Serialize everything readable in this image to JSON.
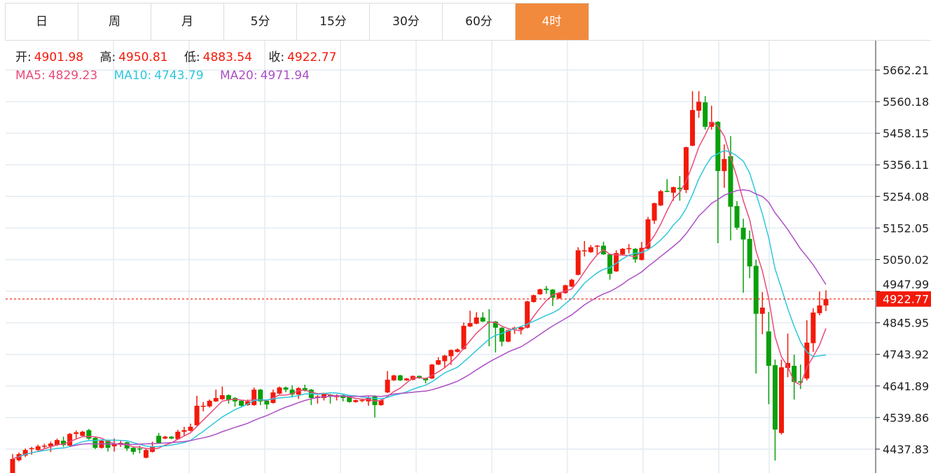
{
  "tabs": [
    {
      "label": "日",
      "active": false
    },
    {
      "label": "周",
      "active": false
    },
    {
      "label": "月",
      "active": false
    },
    {
      "label": "5分",
      "active": false
    },
    {
      "label": "15分",
      "active": false
    },
    {
      "label": "30分",
      "active": false
    },
    {
      "label": "60分",
      "active": false
    },
    {
      "label": "4时",
      "active": true
    }
  ],
  "ohlc": {
    "open_label": "开:",
    "open": "4901.98",
    "high_label": "高:",
    "high": "4950.81",
    "low_label": "低:",
    "low": "4883.54",
    "close_label": "收:",
    "close": "4922.77"
  },
  "ma": {
    "ma5_label": "MA5:",
    "ma5": "4829.23",
    "ma10_label": "MA10:",
    "ma10": "4743.79",
    "ma20_label": "MA20:",
    "ma20": "4971.94"
  },
  "colors": {
    "up": "#f21a0a",
    "down": "#0aa00a",
    "ma5": "#ea4a7a",
    "ma10": "#2ec7dc",
    "ma20": "#ad4fc6",
    "active_tab": "#f28a3d"
  },
  "chart_data": {
    "type": "candlestick",
    "ylim": [
      4380,
      5700
    ],
    "y_ticks": [
      "5662.21",
      "5560.18",
      "5458.15",
      "5356.11",
      "5254.08",
      "5152.05",
      "5050.02",
      "4947.99",
      "4845.95",
      "4743.92",
      "4641.89",
      "4539.86",
      "4437.83"
    ],
    "last_price": "4922.77",
    "series_fields": [
      "open",
      "close",
      "high",
      "low"
    ],
    "candles": [
      [
        4360,
        4406,
        4422,
        4355
      ],
      [
        4402,
        4422,
        4427,
        4398
      ],
      [
        4417,
        4435,
        4440,
        4412
      ],
      [
        4440,
        4441,
        4445,
        4420
      ],
      [
        4435,
        4447,
        4452,
        4430
      ],
      [
        4447,
        4449,
        4455,
        4440
      ],
      [
        4447,
        4456,
        4462,
        4428
      ],
      [
        4451,
        4467,
        4472,
        4448
      ],
      [
        4465,
        4451,
        4478,
        4445
      ],
      [
        4449,
        4487,
        4490,
        4447
      ],
      [
        4487,
        4492,
        4498,
        4473
      ],
      [
        4481,
        4494,
        4497,
        4478
      ],
      [
        4499,
        4472,
        4503,
        4468
      ],
      [
        4474,
        4442,
        4476,
        4438
      ],
      [
        4442,
        4465,
        4468,
        4440
      ],
      [
        4465,
        4442,
        4467,
        4430
      ],
      [
        4447,
        4456,
        4472,
        4430
      ],
      [
        4455,
        4458,
        4465,
        4445
      ],
      [
        4460,
        4440,
        4462,
        4432
      ],
      [
        4442,
        4429,
        4444,
        4420
      ],
      [
        4440,
        4438,
        4449,
        4424
      ],
      [
        4410,
        4435,
        4440,
        4408
      ],
      [
        4429,
        4447,
        4462,
        4427
      ],
      [
        4481,
        4458,
        4490,
        4455
      ],
      [
        4472,
        4478,
        4481,
        4470
      ],
      [
        4478,
        4472,
        4480,
        4470
      ],
      [
        4470,
        4494,
        4500,
        4468
      ],
      [
        4494,
        4499,
        4510,
        4480
      ],
      [
        4497,
        4510,
        4520,
        4495
      ],
      [
        4515,
        4578,
        4610,
        4513
      ],
      [
        4576,
        4578,
        4590,
        4560
      ],
      [
        4576,
        4594,
        4598,
        4572
      ],
      [
        4592,
        4603,
        4630,
        4590
      ],
      [
        4599,
        4612,
        4640,
        4597
      ],
      [
        4612,
        4596,
        4615,
        4585
      ],
      [
        4603,
        4592,
        4606,
        4575
      ],
      [
        4594,
        4578,
        4596,
        4572
      ],
      [
        4580,
        4592,
        4598,
        4578
      ],
      [
        4580,
        4630,
        4637,
        4578
      ],
      [
        4630,
        4592,
        4632,
        4580
      ],
      [
        4594,
        4582,
        4596,
        4567
      ],
      [
        4587,
        4621,
        4630,
        4585
      ],
      [
        4617,
        4637,
        4640,
        4615
      ],
      [
        4637,
        4630,
        4640,
        4622
      ],
      [
        4630,
        4614,
        4644,
        4605
      ],
      [
        4614,
        4635,
        4638,
        4600
      ],
      [
        4635,
        4626,
        4646,
        4624
      ],
      [
        4630,
        4603,
        4632,
        4580
      ],
      [
        4603,
        4608,
        4612,
        4585
      ],
      [
        4603,
        4617,
        4620,
        4595
      ],
      [
        4614,
        4608,
        4616,
        4585
      ],
      [
        4606,
        4612,
        4615,
        4595
      ],
      [
        4612,
        4603,
        4614,
        4592
      ],
      [
        4608,
        4590,
        4610,
        4588
      ],
      [
        4590,
        4596,
        4598,
        4588
      ],
      [
        4593,
        4597,
        4600,
        4590
      ],
      [
        4592,
        4605,
        4608,
        4578
      ],
      [
        4608,
        4580,
        4612,
        4540
      ],
      [
        4580,
        4596,
        4599,
        4578
      ],
      [
        4621,
        4662,
        4690,
        4619
      ],
      [
        4660,
        4676,
        4678,
        4658
      ],
      [
        4676,
        4660,
        4678,
        4658
      ],
      [
        4660,
        4666,
        4668,
        4658
      ],
      [
        4662,
        4674,
        4676,
        4660
      ],
      [
        4674,
        4667,
        4676,
        4665
      ],
      [
        4667,
        4660,
        4669,
        4650
      ],
      [
        4666,
        4711,
        4713,
        4664
      ],
      [
        4711,
        4725,
        4735,
        4709
      ],
      [
        4722,
        4740,
        4742,
        4700
      ],
      [
        4738,
        4758,
        4760,
        4710
      ],
      [
        4752,
        4760,
        4763,
        4750
      ],
      [
        4761,
        4836,
        4847,
        4759
      ],
      [
        4834,
        4845,
        4885,
        4832
      ],
      [
        4843,
        4863,
        4880,
        4841
      ],
      [
        4863,
        4850,
        4880,
        4848
      ],
      [
        4850,
        4848,
        4890,
        4770
      ],
      [
        4850,
        4830,
        4852,
        4750
      ],
      [
        4830,
        4785,
        4832,
        4770
      ],
      [
        4785,
        4822,
        4824,
        4783
      ],
      [
        4826,
        4830,
        4833,
        4810
      ],
      [
        4824,
        4832,
        4835,
        4808
      ],
      [
        4830,
        4915,
        4917,
        4828
      ],
      [
        4913,
        4935,
        4937,
        4911
      ],
      [
        4938,
        4954,
        4956,
        4936
      ],
      [
        4956,
        4952,
        4965,
        4940
      ],
      [
        4953,
        4927,
        4955,
        4900
      ],
      [
        4925,
        4943,
        4945,
        4923
      ],
      [
        4942,
        4967,
        4969,
        4940
      ],
      [
        4963,
        4985,
        4988,
        4961
      ],
      [
        5001,
        5080,
        5090,
        4999
      ],
      [
        5078,
        5080,
        5110,
        5060
      ],
      [
        5074,
        5090,
        5097,
        5072
      ],
      [
        5092,
        5095,
        5097,
        5065
      ],
      [
        5095,
        5067,
        5108,
        5065
      ],
      [
        5067,
        5004,
        5069,
        4985
      ],
      [
        5012,
        5071,
        5080,
        5010
      ],
      [
        5067,
        5085,
        5087,
        5065
      ],
      [
        5085,
        5087,
        5100,
        5070
      ],
      [
        5085,
        5051,
        5087,
        5040
      ],
      [
        5049,
        5088,
        5107,
        5047
      ],
      [
        5085,
        5180,
        5188,
        5083
      ],
      [
        5176,
        5232,
        5234,
        5165
      ],
      [
        5225,
        5271,
        5275,
        5223
      ],
      [
        5272,
        5270,
        5310,
        5268
      ],
      [
        5266,
        5284,
        5286,
        5240
      ],
      [
        5282,
        5278,
        5320,
        5240
      ],
      [
        5275,
        5413,
        5415,
        5265
      ],
      [
        5418,
        5533,
        5594,
        5416
      ],
      [
        5531,
        5560,
        5594,
        5508
      ],
      [
        5558,
        5479,
        5578,
        5470
      ],
      [
        5479,
        5495,
        5547,
        5470
      ],
      [
        5495,
        5336,
        5497,
        5103
      ],
      [
        5336,
        5375,
        5422,
        5282
      ],
      [
        5384,
        5221,
        5449,
        5112
      ],
      [
        5223,
        5153,
        5239,
        5146
      ],
      [
        5153,
        5115,
        5182,
        4943
      ],
      [
        5117,
        5028,
        5144,
        4990
      ],
      [
        5030,
        4875,
        5050,
        4682
      ],
      [
        4875,
        4895,
        4945,
        4809
      ],
      [
        4818,
        4707,
        4881,
        4583
      ],
      [
        4709,
        4501,
        4727,
        4401
      ],
      [
        4490,
        4702,
        4727,
        4485
      ],
      [
        4700,
        4716,
        4811,
        4670
      ],
      [
        4707,
        4655,
        4743,
        4598
      ],
      [
        4657,
        4653,
        4711,
        4632
      ],
      [
        4666,
        4782,
        4854,
        4660
      ],
      [
        4780,
        4879,
        4893,
        4752
      ],
      [
        4877,
        4902,
        4947,
        4870
      ],
      [
        4901.98,
        4922.77,
        4950.81,
        4883.54
      ]
    ],
    "ma_periods": [
      5,
      10,
      20
    ]
  }
}
